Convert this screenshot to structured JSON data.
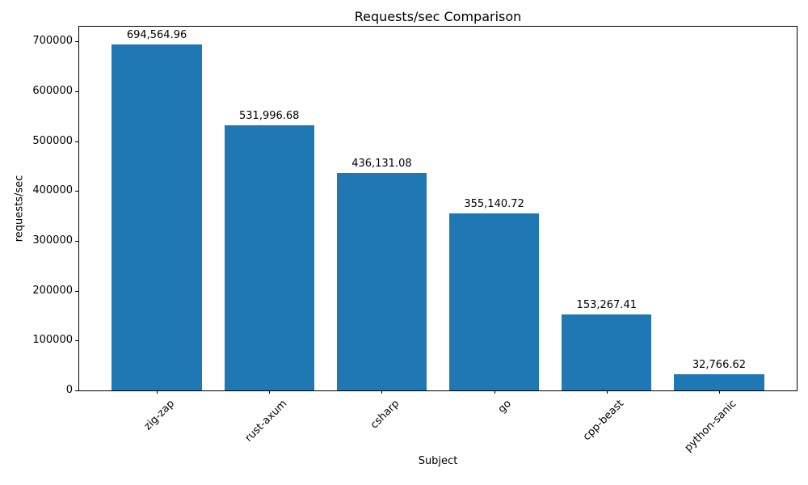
{
  "chart_data": {
    "type": "bar",
    "title": "Requests/sec Comparison",
    "xlabel": "Subject",
    "ylabel": "requests/sec",
    "categories": [
      "zig-zap",
      "rust-axum",
      "csharp",
      "go",
      "cpp-beast",
      "python-sanic"
    ],
    "values": [
      694564.96,
      531996.68,
      436131.08,
      355140.72,
      153267.41,
      32766.62
    ],
    "bar_labels": [
      "694,564.96",
      "531,996.68",
      "436,131.08",
      "355,140.72",
      "153,267.41",
      "32,766.62"
    ],
    "yticks": [
      0,
      100000,
      200000,
      300000,
      400000,
      500000,
      600000,
      700000
    ],
    "ytick_labels": [
      "0",
      "100000",
      "200000",
      "300000",
      "400000",
      "500000",
      "600000",
      "700000"
    ],
    "ylim": [
      0,
      730000
    ],
    "xtick_rotation_deg": 45,
    "bar_color": "#1f77b4",
    "text_color": "#000000",
    "grid": false,
    "legend": null
  }
}
